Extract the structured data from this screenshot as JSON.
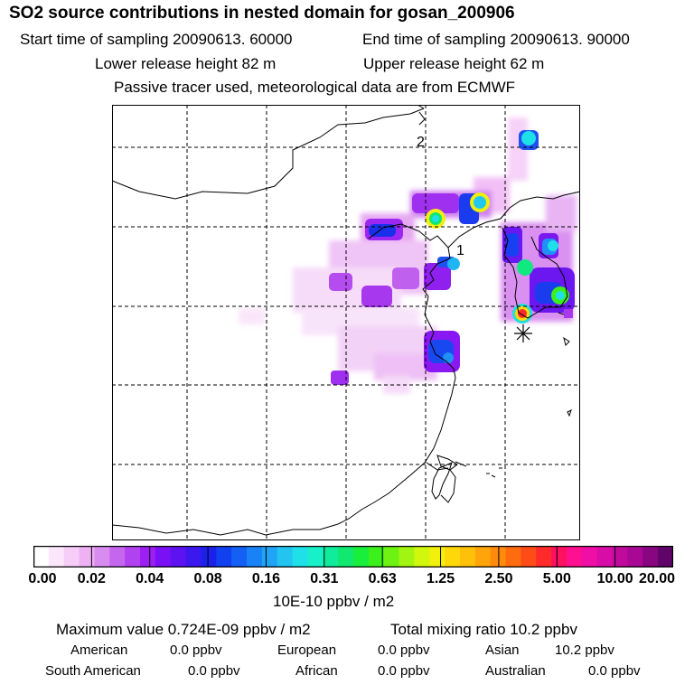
{
  "header": {
    "title": "SO2 source contributions in nested domain for gosan_200906",
    "start_time": "Start time of sampling 20090613. 60000",
    "end_time": "End time of sampling 20090613. 90000",
    "lower_release": "Lower release height   82 m",
    "upper_release": "Upper release height   62 m",
    "tracer_note": "Passive tracer used, meteorological data are from ECMWF"
  },
  "map": {
    "receptor_label_1": "1",
    "receptor_label_2": "2"
  },
  "colorbar": {
    "tick_labels": [
      "0.00",
      "0.02",
      "0.04",
      "0.08",
      "0.16",
      "0.31",
      "0.63",
      "1.25",
      "2.50",
      "5.00",
      "10.00",
      "20.00"
    ],
    "unit": "10E-10 ppbv / m2",
    "colors": [
      "#ffffff",
      "#fbe6fb",
      "#f5cdf7",
      "#eeb2f4",
      "#d98cf0",
      "#c567ee",
      "#b142f0",
      "#9d1ff3",
      "#7a10f5",
      "#5d12f2",
      "#3c18ef",
      "#1b21ea",
      "#1040f0",
      "#1460f5",
      "#1a82f7",
      "#20a4f5",
      "#23c4f0",
      "#1fe0e8",
      "#17f0c8",
      "#10ec9c",
      "#10e870",
      "#1aee3c",
      "#3cf01c",
      "#6ef214",
      "#a2f510",
      "#d2f70e",
      "#f2f00c",
      "#ffd80a",
      "#ffc00a",
      "#ffa40a",
      "#ff8a0c",
      "#ff6c10",
      "#ff4c16",
      "#ff2a2a",
      "#ff1060",
      "#ff1090",
      "#ef0ea6",
      "#d80ca6",
      "#c00a9c",
      "#a80894",
      "#880680",
      "#60046a"
    ]
  },
  "footer": {
    "maximum_value": "Maximum value  0.724E-09 ppbv / m2",
    "total_mixing": "Total mixing ratio       10.2 ppbv",
    "american_label": "American",
    "american_value": "0.0 ppbv",
    "european_label": "European",
    "european_value": "0.0 ppbv",
    "asian_label": "Asian",
    "asian_value": "10.2 ppbv",
    "south_american_label": "South American",
    "south_american_value": "0.0 ppbv",
    "african_label": "African",
    "african_value": "0.0 ppbv",
    "australian_label": "Australian",
    "australian_value": "0.0 ppbv"
  }
}
